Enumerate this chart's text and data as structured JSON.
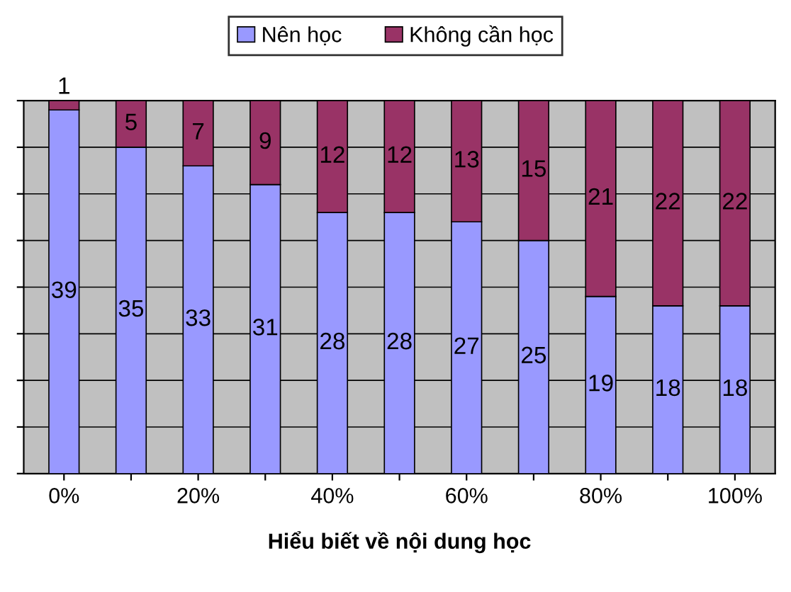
{
  "chart_data": {
    "type": "bar",
    "stacked": true,
    "xlabel": "Hiểu biết về nội dung học",
    "categories": [
      "0%",
      null,
      "20%",
      null,
      "40%",
      null,
      "60%",
      null,
      "80%",
      null,
      "100%"
    ],
    "series": [
      {
        "name": "Nên học",
        "color": "#9999ff",
        "values": [
          39,
          35,
          33,
          31,
          28,
          28,
          27,
          25,
          19,
          18,
          18
        ]
      },
      {
        "name": "Không cần học",
        "color": "#993366",
        "values": [
          1,
          5,
          7,
          9,
          12,
          12,
          13,
          15,
          21,
          22,
          22
        ]
      }
    ],
    "data_labels": true,
    "legend": "top",
    "grid": "y",
    "tick_labels": "x",
    "ylim": [
      0,
      40
    ],
    "yticks": [
      {
        "value": 0,
        "label": null
      },
      {
        "value": 5,
        "label": null
      },
      {
        "value": 10,
        "label": null
      },
      {
        "value": 15,
        "label": null
      },
      {
        "value": 20,
        "label": null
      },
      {
        "value": 25,
        "label": null
      },
      {
        "value": 30,
        "label": null
      },
      {
        "value": 35,
        "label": null
      },
      {
        "value": 40,
        "label": null
      }
    ]
  }
}
